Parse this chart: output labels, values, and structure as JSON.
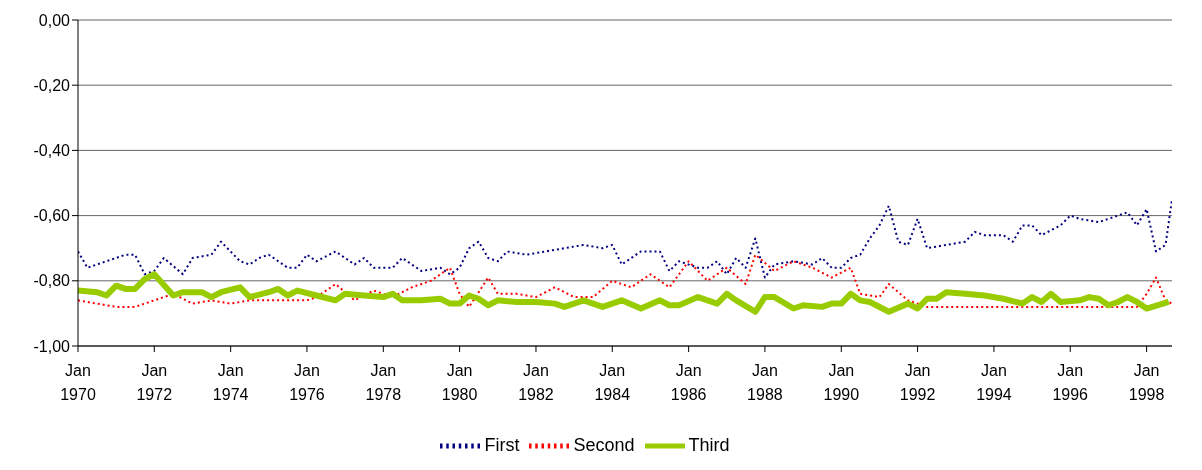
{
  "chart_data": {
    "type": "line",
    "xlim": [
      "1970-01",
      "1998-09"
    ],
    "xticks": [
      {
        "value": "1970-01",
        "label": "Jan 1970"
      },
      {
        "value": "1972-01",
        "label": "Jan 1972"
      },
      {
        "value": "1974-01",
        "label": "Jan 1974"
      },
      {
        "value": "1976-01",
        "label": "Jan 1976"
      },
      {
        "value": "1978-01",
        "label": "Jan 1978"
      },
      {
        "value": "1980-01",
        "label": "Jan 1980"
      },
      {
        "value": "1982-01",
        "label": "Jan 1982"
      },
      {
        "value": "1984-01",
        "label": "Jan 1984"
      },
      {
        "value": "1986-01",
        "label": "Jan 1986"
      },
      {
        "value": "1988-01",
        "label": "Jan 1988"
      },
      {
        "value": "1990-01",
        "label": "Jan 1990"
      },
      {
        "value": "1992-01",
        "label": "Jan 1992"
      },
      {
        "value": "1994-01",
        "label": "Jan 1994"
      },
      {
        "value": "1996-01",
        "label": "Jan 1996"
      },
      {
        "value": "1998-01",
        "label": "Jan 1998"
      }
    ],
    "ylim": [
      -1,
      0
    ],
    "yticks": [
      {
        "value": -1,
        "label": "-1,00"
      },
      {
        "value": -0.8,
        "label": "-0,80"
      },
      {
        "value": -0.6,
        "label": "-0,60"
      },
      {
        "value": -0.4,
        "label": "-0,40"
      },
      {
        "value": -0.2,
        "label": "-0,20"
      },
      {
        "value": 0,
        "label": "0,00"
      }
    ],
    "grid": "y",
    "legend": "bottom",
    "marker": "none",
    "series": [
      {
        "name": "First",
        "color": "#000080",
        "line_style": "dotted",
        "x": [
          "1970-01",
          "1970-04",
          "1970-10",
          "1971-04",
          "1971-07",
          "1971-10",
          "1972-01",
          "1972-04",
          "1972-10",
          "1973-01",
          "1973-07",
          "1973-10",
          "1974-04",
          "1974-07",
          "1974-10",
          "1975-01",
          "1975-07",
          "1975-10",
          "1976-01",
          "1976-04",
          "1976-10",
          "1977-04",
          "1977-07",
          "1977-10",
          "1978-04",
          "1978-07",
          "1979-01",
          "1979-07",
          "1979-10",
          "1980-01",
          "1980-04",
          "1980-07",
          "1980-10",
          "1981-01",
          "1981-04",
          "1981-10",
          "1982-04",
          "1982-10",
          "1983-04",
          "1983-10",
          "1984-01",
          "1984-04",
          "1984-10",
          "1985-04",
          "1985-07",
          "1985-10",
          "1986-04",
          "1986-07",
          "1986-10",
          "1987-01",
          "1987-04",
          "1987-07",
          "1987-10",
          "1988-01",
          "1988-04",
          "1988-10",
          "1989-04",
          "1989-07",
          "1989-10",
          "1990-01",
          "1990-04",
          "1990-07",
          "1990-10",
          "1991-01",
          "1991-04",
          "1991-07",
          "1991-10",
          "1992-01",
          "1992-04",
          "1992-10",
          "1993-04",
          "1993-07",
          "1993-10",
          "1994-04",
          "1994-07",
          "1994-10",
          "1995-01",
          "1995-04",
          "1995-10",
          "1996-01",
          "1996-04",
          "1996-10",
          "1997-04",
          "1997-07",
          "1997-10",
          "1998-01",
          "1998-04",
          "1998-07",
          "1998-09"
        ],
        "values": [
          -0.71,
          -0.76,
          -0.74,
          -0.72,
          -0.72,
          -0.78,
          -0.77,
          -0.73,
          -0.78,
          -0.73,
          -0.72,
          -0.68,
          -0.74,
          -0.75,
          -0.73,
          -0.72,
          -0.76,
          -0.76,
          -0.72,
          -0.74,
          -0.71,
          -0.75,
          -0.73,
          -0.76,
          -0.76,
          -0.73,
          -0.77,
          -0.76,
          -0.78,
          -0.76,
          -0.7,
          -0.68,
          -0.73,
          -0.74,
          -0.71,
          -0.72,
          -0.71,
          -0.7,
          -0.69,
          -0.7,
          -0.69,
          -0.75,
          -0.71,
          -0.71,
          -0.77,
          -0.74,
          -0.76,
          -0.76,
          -0.74,
          -0.78,
          -0.73,
          -0.76,
          -0.67,
          -0.79,
          -0.75,
          -0.74,
          -0.75,
          -0.73,
          -0.76,
          -0.76,
          -0.73,
          -0.72,
          -0.67,
          -0.63,
          -0.57,
          -0.68,
          -0.69,
          -0.61,
          -0.7,
          -0.69,
          -0.68,
          -0.65,
          -0.66,
          -0.66,
          -0.68,
          -0.63,
          -0.63,
          -0.66,
          -0.63,
          -0.6,
          -0.61,
          -0.62,
          -0.6,
          -0.59,
          -0.63,
          -0.58,
          -0.71,
          -0.69,
          -0.55
        ]
      },
      {
        "name": "Second",
        "color": "#ff0000",
        "line_style": "dotted",
        "x": [
          "1970-01",
          "1970-07",
          "1971-01",
          "1971-07",
          "1972-01",
          "1972-07",
          "1973-01",
          "1973-07",
          "1974-01",
          "1974-07",
          "1975-01",
          "1975-07",
          "1976-01",
          "1976-04",
          "1976-10",
          "1977-04",
          "1977-10",
          "1978-04",
          "1978-10",
          "1979-04",
          "1979-10",
          "1980-01",
          "1980-04",
          "1980-10",
          "1981-01",
          "1981-07",
          "1982-01",
          "1982-07",
          "1983-01",
          "1983-07",
          "1984-01",
          "1984-07",
          "1985-01",
          "1985-07",
          "1986-01",
          "1986-07",
          "1987-01",
          "1987-07",
          "1987-10",
          "1988-04",
          "1988-10",
          "1989-04",
          "1989-10",
          "1990-04",
          "1990-07",
          "1991-01",
          "1991-04",
          "1991-10",
          "1992-04",
          "1992-10",
          "1993-04",
          "1993-10",
          "1994-04",
          "1994-10",
          "1995-04",
          "1995-10",
          "1996-04",
          "1996-10",
          "1997-04",
          "1997-10",
          "1998-01",
          "1998-04",
          "1998-07",
          "1998-09"
        ],
        "values": [
          -0.86,
          -0.87,
          -0.88,
          -0.88,
          -0.86,
          -0.84,
          -0.87,
          -0.86,
          -0.87,
          -0.86,
          -0.86,
          -0.86,
          -0.86,
          -0.85,
          -0.81,
          -0.86,
          -0.83,
          -0.85,
          -0.82,
          -0.8,
          -0.76,
          -0.84,
          -0.88,
          -0.79,
          -0.84,
          -0.84,
          -0.85,
          -0.82,
          -0.85,
          -0.85,
          -0.8,
          -0.82,
          -0.78,
          -0.82,
          -0.74,
          -0.8,
          -0.76,
          -0.81,
          -0.72,
          -0.77,
          -0.74,
          -0.76,
          -0.79,
          -0.76,
          -0.84,
          -0.85,
          -0.81,
          -0.86,
          -0.88,
          -0.88,
          -0.88,
          -0.88,
          -0.88,
          -0.88,
          -0.88,
          -0.88,
          -0.88,
          -0.88,
          -0.88,
          -0.88,
          -0.84,
          -0.79,
          -0.86,
          -0.87
        ]
      },
      {
        "name": "Third",
        "color": "#99cc00",
        "line_style": "solid",
        "x": [
          "1970-01",
          "1970-07",
          "1970-10",
          "1971-01",
          "1971-04",
          "1971-07",
          "1971-10",
          "1972-01",
          "1972-07",
          "1972-10",
          "1973-04",
          "1973-07",
          "1973-10",
          "1974-04",
          "1974-07",
          "1975-01",
          "1975-04",
          "1975-07",
          "1975-10",
          "1976-04",
          "1976-10",
          "1977-01",
          "1977-07",
          "1978-01",
          "1978-04",
          "1978-07",
          "1979-01",
          "1979-07",
          "1979-10",
          "1980-01",
          "1980-04",
          "1980-07",
          "1980-10",
          "1981-01",
          "1981-07",
          "1982-01",
          "1982-07",
          "1982-10",
          "1983-04",
          "1983-10",
          "1984-04",
          "1984-10",
          "1985-04",
          "1985-07",
          "1985-10",
          "1986-04",
          "1986-10",
          "1987-01",
          "1987-04",
          "1987-10",
          "1988-01",
          "1988-04",
          "1988-10",
          "1989-01",
          "1989-07",
          "1989-10",
          "1990-01",
          "1990-04",
          "1990-07",
          "1990-10",
          "1991-04",
          "1991-10",
          "1992-01",
          "1992-04",
          "1992-07",
          "1992-10",
          "1993-04",
          "1993-10",
          "1994-04",
          "1994-10",
          "1995-01",
          "1995-04",
          "1995-07",
          "1995-10",
          "1996-04",
          "1996-07",
          "1996-10",
          "1997-01",
          "1997-04",
          "1997-07",
          "1997-10",
          "1998-01",
          "1998-08"
        ],
        "values": [
          -0.83,
          -0.835,
          -0.845,
          -0.815,
          -0.825,
          -0.825,
          -0.795,
          -0.78,
          -0.845,
          -0.835,
          -0.835,
          -0.85,
          -0.835,
          -0.82,
          -0.85,
          -0.835,
          -0.825,
          -0.845,
          -0.83,
          -0.845,
          -0.86,
          -0.84,
          -0.845,
          -0.85,
          -0.84,
          -0.86,
          -0.86,
          -0.855,
          -0.87,
          -0.87,
          -0.845,
          -0.855,
          -0.875,
          -0.86,
          -0.865,
          -0.865,
          -0.87,
          -0.88,
          -0.86,
          -0.88,
          -0.86,
          -0.885,
          -0.86,
          -0.875,
          -0.875,
          -0.85,
          -0.87,
          -0.84,
          -0.86,
          -0.895,
          -0.85,
          -0.85,
          -0.885,
          -0.875,
          -0.88,
          -0.87,
          -0.87,
          -0.84,
          -0.86,
          -0.865,
          -0.895,
          -0.87,
          -0.885,
          -0.855,
          -0.855,
          -0.835,
          -0.84,
          -0.845,
          -0.855,
          -0.87,
          -0.85,
          -0.865,
          -0.84,
          -0.865,
          -0.86,
          -0.85,
          -0.855,
          -0.875,
          -0.865,
          -0.85,
          -0.865,
          -0.885,
          -0.865
        ]
      }
    ]
  }
}
